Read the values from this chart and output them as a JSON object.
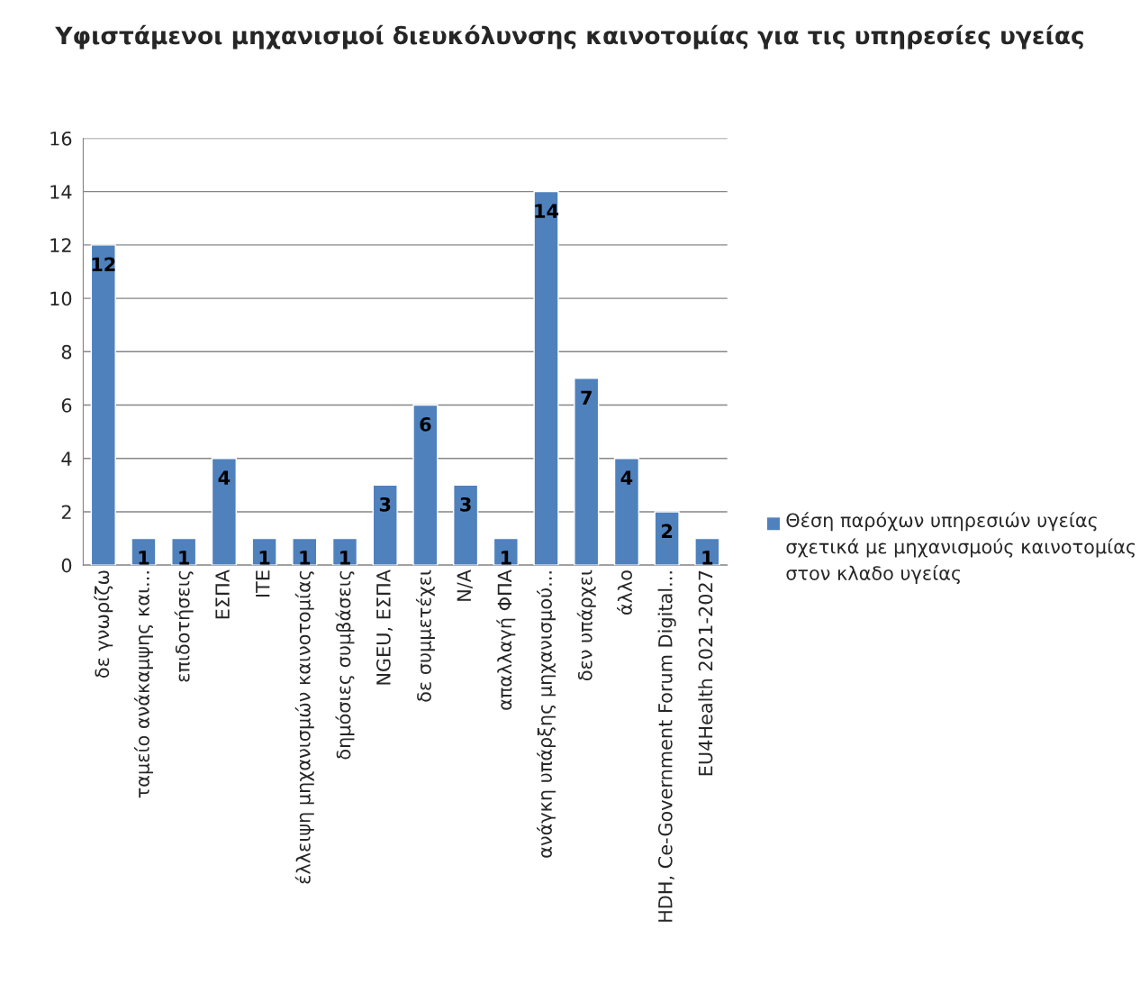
{
  "chart_data": {
    "type": "bar",
    "title": "Υφιστάμενοι μηχανισμοί διευκόλυνσης καινοτομίας για τις υπηρεσίες υγείας",
    "categories": [
      "δε γνωρίζω",
      "ταμείο ανάκαμψης και...",
      "επιδοτήσεις",
      "ΕΣΠΑ",
      "ΙΤΕ",
      "έλλειψη μηχανισμών καινοτομίας",
      "δημόσιες συμβάσεις",
      "NGEU, ΕΣΠΑ",
      "δε συμμετέχει",
      "N/A",
      "απαλλαγή ΦΠΑ",
      "ανάγκη υπάρξης μηχανισμού...",
      "δεν υπάρχει",
      "άλλο",
      "HDH, Ce-Government Forum Digital...",
      "EU4Health 2021-2027"
    ],
    "series": [
      {
        "name": "Θέση παρόχων υπηρεσιών υγείας σχετικά με μηχανισμούς καινοτομίας στον κλαδο υγείας",
        "color": "#4f81bd",
        "values": [
          12,
          1,
          1,
          4,
          1,
          1,
          1,
          3,
          6,
          3,
          1,
          14,
          7,
          4,
          2,
          1
        ]
      }
    ],
    "ylim": [
      0,
      16
    ],
    "yticks": [
      0,
      2,
      4,
      6,
      8,
      10,
      12,
      14,
      16
    ],
    "grid": "y",
    "legend": "right",
    "data_labels": true
  }
}
